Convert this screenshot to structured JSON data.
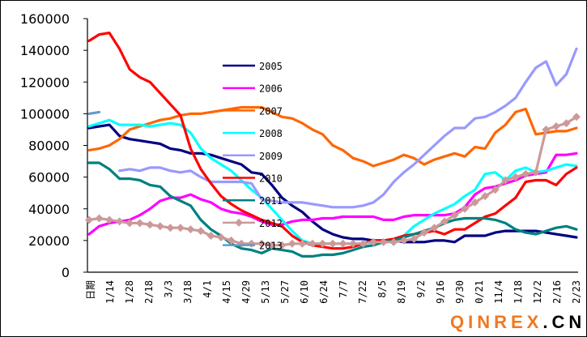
{
  "chart_data": {
    "type": "line",
    "title": "",
    "xlabel": "",
    "ylabel": "",
    "ylim": [
      0,
      160000
    ],
    "yticks": [
      0,
      20000,
      40000,
      60000,
      80000,
      100000,
      120000,
      140000,
      160000
    ],
    "ytick_labels": [
      "0",
      "20000",
      "40000",
      "60000",
      "80000",
      "100000",
      "120000",
      "140000",
      "160000"
    ],
    "x_tick_labels": [
      "日期",
      "1/14",
      "1/28",
      "2/18",
      "3/3",
      "3/18",
      "4/1",
      "4/15",
      "4/29",
      "5/13",
      "5/27",
      "6/10",
      "6/24",
      "7/7",
      "7/22",
      "8/5",
      "8/19",
      "9/2",
      "9/16",
      "9/30",
      "0/21",
      "11/4",
      "1/18",
      "12/2",
      "2/16",
      "2/23"
    ],
    "grid": false,
    "legend_position": "center-left inside plot",
    "points_per_series": 49,
    "series": [
      {
        "name": "2005",
        "color": "#000080",
        "values": [
          91000,
          92000,
          93000,
          86000,
          84000,
          83000,
          82000,
          81000,
          78000,
          77000,
          75000,
          75000,
          74000,
          72000,
          70000,
          68000,
          63000,
          62000,
          55000,
          47000,
          42000,
          38000,
          32000,
          27000,
          24000,
          22000,
          21000,
          21000,
          20000,
          20000,
          20000,
          19000,
          19000,
          19000,
          20000,
          20000,
          19000,
          23000,
          23000,
          23000,
          25000,
          26000,
          26000,
          26000,
          26000,
          25000,
          24000,
          23000,
          22000
        ]
      },
      {
        "name": "2006",
        "color": "#ff00ff",
        "values": [
          24000,
          29000,
          31000,
          32000,
          33000,
          36000,
          40000,
          45000,
          47000,
          47000,
          49000,
          46000,
          44000,
          40000,
          38000,
          37000,
          35000,
          32000,
          30000,
          30000,
          32000,
          33000,
          33000,
          34000,
          34000,
          35000,
          35000,
          35000,
          35000,
          33000,
          33000,
          35000,
          36000,
          36000,
          36000,
          36000,
          37000,
          41000,
          49000,
          53000,
          54000,
          56000,
          58000,
          61000,
          62000,
          63000,
          74000,
          74000,
          75000
        ]
      },
      {
        "name": "2007",
        "color": "#ff6600",
        "values": [
          77000,
          78000,
          80000,
          84000,
          90000,
          92000,
          94000,
          96000,
          97000,
          99000,
          100000,
          100000,
          101000,
          102000,
          103000,
          104000,
          104000,
          104000,
          101000,
          98000,
          97000,
          94000,
          90000,
          87000,
          80000,
          77000,
          72000,
          70000,
          67000,
          69000,
          71000,
          74000,
          72000,
          68000,
          71000,
          73000,
          75000,
          73000,
          79000,
          78000,
          88000,
          93000,
          101000,
          103000,
          87000,
          88000,
          89000,
          89000,
          91000
        ]
      },
      {
        "name": "2008",
        "color": "#00ffff",
        "values": [
          92000,
          94000,
          96000,
          93000,
          93000,
          93000,
          92000,
          93000,
          94000,
          93000,
          88000,
          78000,
          72000,
          68000,
          64000,
          58000,
          52000,
          47000,
          40000,
          33000,
          26000,
          20000,
          18000,
          18000,
          18000,
          18000,
          18000,
          18000,
          20000,
          20000,
          20000,
          23000,
          29000,
          33000,
          37000,
          40000,
          43000,
          48000,
          52000,
          62000,
          63000,
          58000,
          64000,
          66000,
          63000,
          64000,
          66000,
          68000,
          67000
        ]
      },
      {
        "name": "2009",
        "color": "#9999ff",
        "values": [
          null,
          null,
          null,
          64000,
          65000,
          64000,
          66000,
          66000,
          64000,
          63000,
          64000,
          60000,
          57000,
          57000,
          57000,
          57000,
          56000,
          46000,
          45000,
          44000,
          44000,
          44000,
          43000,
          42000,
          41000,
          41000,
          41000,
          42000,
          44000,
          49000,
          57000,
          63000,
          68000,
          74000,
          80000,
          86000,
          91000,
          91000,
          97000,
          98000,
          101000,
          105000,
          110000,
          120000,
          129000,
          133000,
          118000,
          125000,
          141000
        ]
      },
      {
        "name": "2010",
        "color": "#ff0000",
        "values": [
          146000,
          150000,
          151000,
          141000,
          128000,
          123000,
          120000,
          113000,
          106000,
          99000,
          78000,
          65000,
          56000,
          48000,
          43000,
          39000,
          36000,
          33000,
          31000,
          29000,
          23000,
          19000,
          17000,
          16000,
          15000,
          15000,
          16000,
          18000,
          20000,
          20000,
          21000,
          23000,
          24000,
          25000,
          26000,
          24000,
          27000,
          27000,
          31000,
          35000,
          37000,
          42000,
          47000,
          57000,
          58000,
          58000,
          55000,
          62000,
          66000
        ]
      },
      {
        "name": "2011",
        "color": "#008080",
        "values": [
          69000,
          69000,
          65000,
          59000,
          59000,
          58000,
          55000,
          54000,
          48000,
          45000,
          42000,
          33000,
          27000,
          23000,
          18000,
          15000,
          14000,
          12000,
          15000,
          14000,
          13000,
          10000,
          10000,
          11000,
          11000,
          12000,
          14000,
          16000,
          17000,
          19000,
          20000,
          22000,
          24000,
          26000,
          28000,
          31000,
          33000,
          34000,
          34000,
          34000,
          33000,
          31000,
          27000,
          25000,
          24000,
          26000,
          28000,
          29000,
          27000
        ]
      },
      {
        "name": "2012",
        "color": "#cc9999",
        "marker": "diamond",
        "values": [
          33000,
          34000,
          33000,
          32000,
          31000,
          31000,
          30000,
          29000,
          28000,
          28000,
          27000,
          26000,
          23000,
          22000,
          20000,
          18000,
          18000,
          18000,
          17000,
          17000,
          18000,
          18000,
          18000,
          18000,
          18000,
          18000,
          18000,
          18000,
          19000,
          19000,
          19000,
          20000,
          21000,
          25000,
          28000,
          32000,
          36000,
          40000,
          44000,
          48000,
          52000,
          58000,
          60000,
          62000,
          63000,
          90000,
          92000,
          94000,
          98000
        ]
      },
      {
        "name": "2013",
        "color": "#6699cc",
        "values": [
          100000,
          101000,
          null,
          null,
          null,
          null,
          null,
          null,
          null,
          null,
          null,
          null,
          null,
          null,
          null,
          null,
          null,
          null,
          null,
          null,
          null,
          null,
          null,
          null,
          null,
          null,
          null,
          null,
          null,
          null,
          null,
          null,
          null,
          null,
          null,
          null,
          null,
          null,
          null,
          null,
          null,
          null,
          null,
          null,
          null,
          null,
          null,
          null,
          null
        ]
      }
    ]
  },
  "watermark": {
    "brand": "QINREX",
    "tld": ".CN"
  }
}
